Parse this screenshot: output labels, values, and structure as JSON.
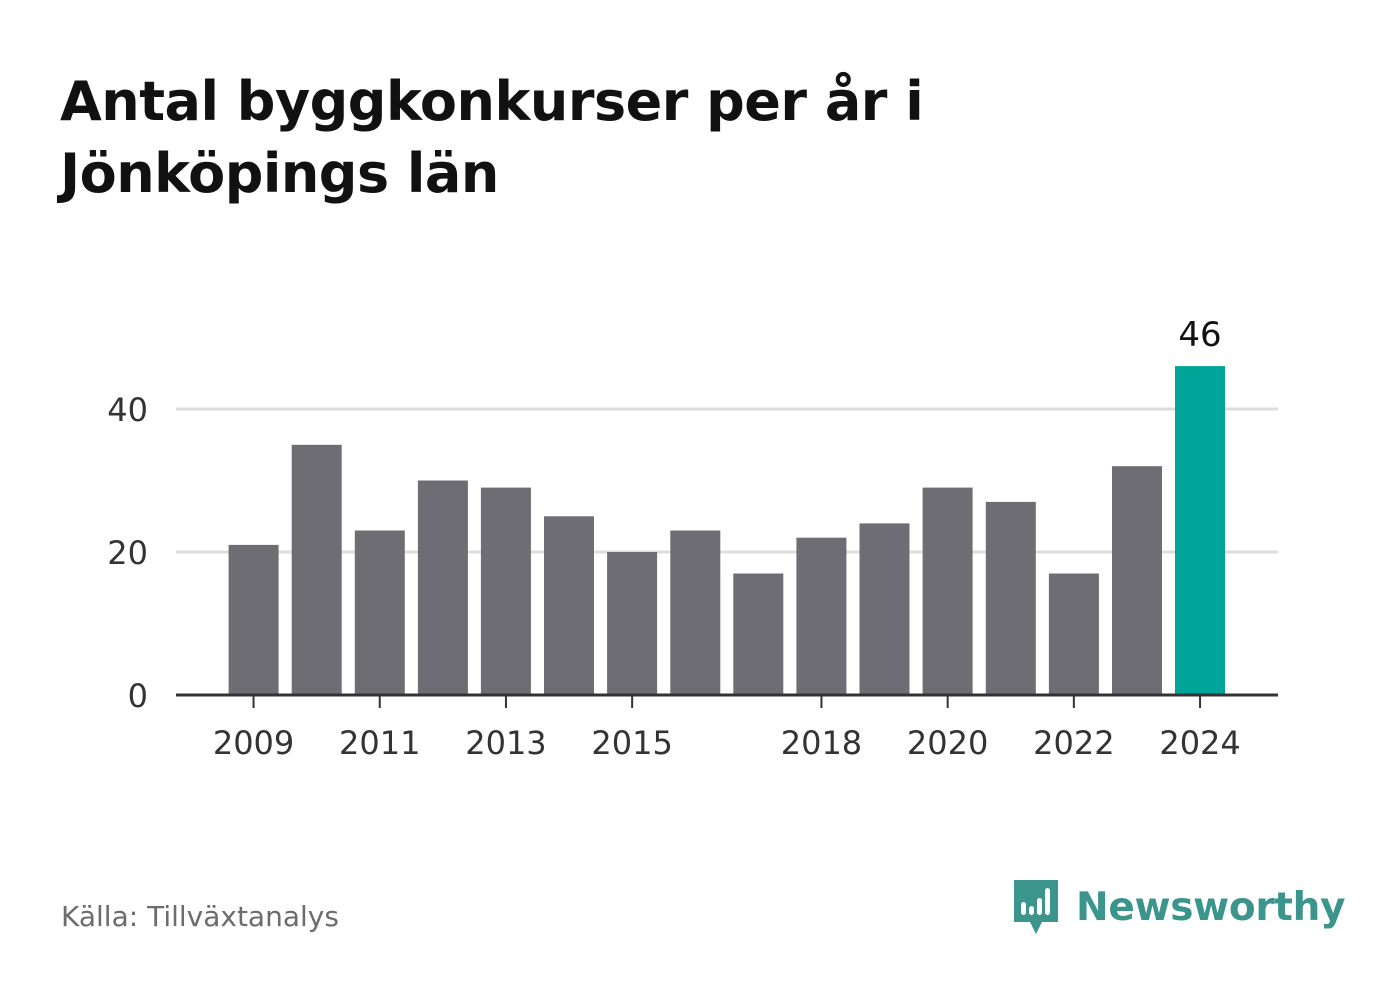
{
  "title": "Antal byggkonkurser per år i Jönköpings län",
  "source": "Källa: Tillväxtanalys",
  "brand": {
    "name": "Newsworthy",
    "icon": "bar-chart-speech-bubble-icon",
    "color": "#3b958c"
  },
  "colors": {
    "bar": "#6e6d73",
    "highlight": "#00a599",
    "grid": "#dddddd",
    "axis": "#333333",
    "text": "#333333"
  },
  "chart_data": {
    "type": "bar",
    "title": "Antal byggkonkurser per år i Jönköpings län",
    "xlabel": "",
    "ylabel": "",
    "categories": [
      "2009",
      "2010",
      "2011",
      "2012",
      "2013",
      "2014",
      "2015",
      "2016",
      "2017",
      "2018",
      "2019",
      "2020",
      "2021",
      "2022",
      "2023",
      "2024"
    ],
    "values": [
      21,
      35,
      23,
      30,
      29,
      25,
      20,
      23,
      17,
      22,
      24,
      29,
      27,
      17,
      32,
      46
    ],
    "x_tick_labels": [
      "2009",
      "2011",
      "2013",
      "2015",
      "2018",
      "2020",
      "2022",
      "2024"
    ],
    "y_ticks": [
      0,
      20,
      40
    ],
    "ylim": [
      0,
      46
    ],
    "grid": true,
    "highlight_category": "2024",
    "highlight_label": "46"
  }
}
